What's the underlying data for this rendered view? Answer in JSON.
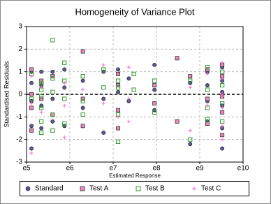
{
  "chart_data": {
    "type": "scatter",
    "title": "Homogeneity of Variance Plot",
    "x_label": "Estimated Response",
    "y_label": "Standardised Residuals",
    "xscale": "log",
    "grid": true,
    "hline": 0,
    "legend_position": "bottom",
    "xlim": [
      100000,
      10000000000
    ],
    "ylim": [
      -3,
      3
    ],
    "xticks": [
      {
        "value": 100000,
        "label": "e5"
      },
      {
        "value": 1000000,
        "label": "e6"
      },
      {
        "value": 10000000,
        "label": "e7"
      },
      {
        "value": 100000000,
        "label": "e8"
      },
      {
        "value": 1000000000,
        "label": "e9"
      },
      {
        "value": 10000000000,
        "label": "e10"
      }
    ],
    "yticks": [
      -3,
      -2,
      -1,
      0,
      1,
      2,
      3
    ],
    "series": [
      {
        "name": "Standard",
        "color": "#5a5a9c",
        "marker": "circle",
        "x": [
          130000,
          130000,
          130000,
          130000,
          130000,
          220000,
          220000,
          220000,
          220000,
          400000,
          400000,
          400000,
          750000,
          750000,
          750000,
          2000000,
          2000000,
          6000000,
          6000000,
          6000000,
          13000000,
          13000000,
          23000000,
          23000000,
          90000000,
          90000000,
          90000000,
          300000000,
          600000000,
          600000000,
          1500000000,
          1500000000,
          1500000000,
          1500000000,
          3300000000,
          3300000000,
          3300000000,
          3300000000,
          3300000000,
          3300000000
        ],
        "values": [
          1.0,
          0.5,
          -0.3,
          -1.4,
          -2.4,
          1.0,
          0.4,
          -0.5,
          -1.5,
          1.0,
          -0.2,
          -1.2,
          1.1,
          0.3,
          -1.4,
          0.6,
          -0.6,
          1.0,
          -0.2,
          -1.7,
          1.1,
          0.1,
          0.7,
          -0.3,
          1.3,
          0.2,
          -0.7,
          1.6,
          0.5,
          -2.2,
          1.0,
          0.4,
          -0.3,
          -1.2,
          1.2,
          0.6,
          0.1,
          -0.5,
          -1.5,
          -2.4
        ]
      },
      {
        "name": "Test A",
        "color": "#e888b8",
        "marker": "square",
        "x": [
          130000,
          130000,
          130000,
          130000,
          220000,
          220000,
          400000,
          400000,
          2000000,
          2000000,
          2000000,
          13000000,
          13000000,
          13000000,
          13000000,
          90000000,
          90000000,
          300000000,
          300000000,
          600000000,
          1500000000,
          1500000000,
          1500000000,
          3300000000,
          3300000000,
          3300000000,
          3300000000,
          3300000000
        ],
        "values": [
          1.1,
          0.0,
          -0.6,
          -1.6,
          0.6,
          -0.2,
          0.8,
          -0.9,
          1.9,
          -0.2,
          -1.4,
          0.9,
          0.4,
          -0.7,
          -1.5,
          0.4,
          -0.4,
          1.6,
          -1.2,
          0.8,
          1.1,
          -0.2,
          -1.3,
          1.3,
          0.8,
          -0.1,
          -0.8,
          -1.8
        ]
      },
      {
        "name": "Test B",
        "color": "#2a9a2a",
        "marker": "open-square",
        "x": [
          130000,
          130000,
          220000,
          220000,
          220000,
          220000,
          220000,
          220000,
          400000,
          400000,
          400000,
          400000,
          400000,
          750000,
          750000,
          750000,
          750000,
          2000000,
          2000000,
          2000000,
          6000000,
          6000000,
          13000000,
          13000000,
          13000000,
          13000000,
          30000000,
          30000000,
          90000000,
          90000000,
          600000000,
          600000000,
          1500000000,
          1500000000,
          1500000000,
          1500000000,
          3300000000,
          3300000000,
          3300000000,
          3300000000
        ],
        "values": [
          0.9,
          -0.2,
          0.5,
          0.2,
          -0.1,
          -0.6,
          -1.2,
          -1.7,
          2.4,
          0.7,
          0.1,
          -0.9,
          -1.6,
          1.4,
          0.6,
          -0.2,
          -1.3,
          0.8,
          -0.3,
          -0.9,
          1.1,
          0.3,
          0.6,
          0.3,
          -0.9,
          -2.1,
          0.9,
          0.2,
          0.6,
          -0.8,
          0.6,
          -2.0,
          1.2,
          0.2,
          -0.6,
          -1.1,
          1.0,
          0.4,
          -0.4,
          -1.2
        ]
      },
      {
        "name": "Test C",
        "color": "#ff66cc",
        "marker": "plus",
        "x": [
          130000,
          130000,
          130000,
          220000,
          220000,
          750000,
          750000,
          750000,
          2000000,
          6000000,
          6000000,
          13000000,
          23000000,
          23000000,
          23000000,
          600000000,
          600000000,
          1500000000,
          1500000000,
          3300000000,
          3300000000,
          3300000000,
          3300000000,
          3300000000,
          3300000000
        ],
        "values": [
          0.8,
          -0.4,
          -2.6,
          0.3,
          -0.8,
          0.5,
          -0.5,
          -1.9,
          0.2,
          1.3,
          -0.4,
          -1.0,
          1.2,
          -0.2,
          -1.2,
          0.3,
          -1.6,
          0.9,
          -0.5,
          1.4,
          0.7,
          0.0,
          -0.6,
          -1.4,
          -2.0
        ]
      }
    ]
  }
}
